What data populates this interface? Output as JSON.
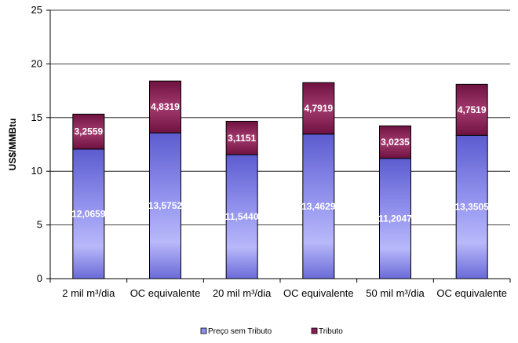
{
  "chart_data": {
    "type": "bar",
    "stacked": true,
    "ylabel": "US$/MMBtu",
    "ylim": [
      0,
      25
    ],
    "yticks": [
      0,
      5,
      10,
      15,
      20,
      25
    ],
    "ytick_labels": [
      "0",
      "5",
      "10",
      "15",
      "20",
      "25"
    ],
    "categories": [
      "2 mil m³/dia",
      "OC equivalente",
      "20 mil m³/dia",
      "OC equivalente",
      "50 mil m³/dia",
      "OC equivalente"
    ],
    "series": [
      {
        "name": "Preço sem Tributo",
        "color": "#8f8fee",
        "values": [
          12.0659,
          13.5752,
          11.544,
          13.4629,
          11.2047,
          13.3505
        ],
        "labels": [
          "12,0659",
          "13,5752",
          "11,5440",
          "13,4629",
          "11,2047",
          "13,3505"
        ]
      },
      {
        "name": "Tributo",
        "color": "#8c1f55",
        "values": [
          3.2559,
          4.8319,
          3.1151,
          4.7919,
          3.0235,
          4.7519
        ],
        "labels": [
          "3,2559",
          "4,8319",
          "3,1151",
          "4,7919",
          "3,0235",
          "4,7519"
        ]
      }
    ],
    "grid": true,
    "legend_position": "bottom"
  }
}
